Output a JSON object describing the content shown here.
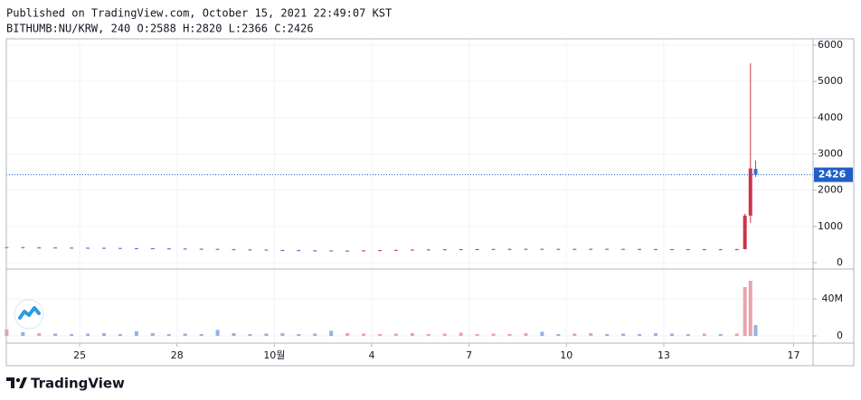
{
  "chart_data": {
    "type": "candlestick",
    "published": "Published on TradingView.com, October 15, 2021 22:49:07 KST",
    "symbol": "BITHUMB:NU/KRW, 240 O:2588 H:2820 L:2366 C:2426",
    "brand": "TradingView",
    "x": [
      22.75,
      23.25,
      23.75,
      24.25,
      24.75,
      25.25,
      25.75,
      26.25,
      26.75,
      27.25,
      27.75,
      28.25,
      28.75,
      29.25,
      29.75,
      30.25,
      30.75,
      31.25,
      31.75,
      32.25,
      32.75,
      33.25,
      33.75,
      34.25,
      34.75,
      35.25,
      35.75,
      36.25,
      36.75,
      37.25,
      37.75,
      38.25,
      38.75,
      39.25,
      39.75,
      40.25,
      40.75,
      41.25,
      41.75,
      42.25,
      42.75,
      43.25,
      43.75,
      44.25,
      44.75,
      45.25,
      45.5,
      45.67,
      45.83
    ],
    "open": [
      425,
      430,
      418,
      420,
      415,
      412,
      410,
      405,
      400,
      398,
      395,
      390,
      385,
      380,
      372,
      365,
      360,
      350,
      345,
      340,
      335,
      330,
      332,
      338,
      345,
      352,
      360,
      365,
      370,
      372,
      375,
      378,
      380,
      382,
      380,
      378,
      380,
      382,
      380,
      378,
      376,
      374,
      372,
      370,
      372,
      370,
      375,
      1300,
      2588
    ],
    "high": [
      438,
      438,
      428,
      428,
      423,
      420,
      418,
      413,
      408,
      406,
      403,
      398,
      393,
      388,
      380,
      373,
      368,
      358,
      353,
      348,
      343,
      340,
      346,
      353,
      360,
      368,
      373,
      378,
      380,
      383,
      386,
      388,
      390,
      390,
      388,
      388,
      390,
      390,
      388,
      386,
      384,
      382,
      380,
      380,
      380,
      383,
      1350,
      5500,
      2820
    ],
    "low": [
      417,
      410,
      410,
      407,
      404,
      402,
      397,
      392,
      390,
      387,
      382,
      377,
      372,
      364,
      357,
      352,
      342,
      337,
      332,
      327,
      322,
      322,
      324,
      330,
      337,
      344,
      352,
      357,
      362,
      364,
      367,
      370,
      372,
      372,
      370,
      370,
      372,
      372,
      370,
      368,
      366,
      364,
      362,
      362,
      362,
      362,
      370,
      1100,
      2366
    ],
    "close": [
      430,
      418,
      420,
      415,
      412,
      410,
      405,
      400,
      398,
      395,
      390,
      385,
      380,
      372,
      365,
      360,
      350,
      345,
      340,
      335,
      330,
      332,
      338,
      345,
      352,
      360,
      365,
      370,
      372,
      375,
      378,
      380,
      382,
      380,
      378,
      380,
      382,
      380,
      378,
      376,
      374,
      372,
      370,
      372,
      370,
      375,
      1300,
      2600,
      2426
    ],
    "volume": [
      7000000,
      4000000,
      3000000,
      2500000,
      2000000,
      2500000,
      3000000,
      2000000,
      5000000,
      3000000,
      2000000,
      2500000,
      2000000,
      6500000,
      3000000,
      2000000,
      2500000,
      3000000,
      2000000,
      2500000,
      5500000,
      3000000,
      2500000,
      2000000,
      2500000,
      3000000,
      2000000,
      2500000,
      3500000,
      2000000,
      2500000,
      2000000,
      3000000,
      4500000,
      2000000,
      2500000,
      3000000,
      2000000,
      2500000,
      2000000,
      3000000,
      2500000,
      2000000,
      2500000,
      2000000,
      2500000,
      52700000,
      59500000,
      11700000
    ],
    "xlim": [
      22.74,
      47.6
    ],
    "xticks": [
      25,
      28,
      {
        "value": 31,
        "label": "10월"
      },
      {
        "value": 34,
        "label": "4"
      },
      {
        "value": 37,
        "label": "7"
      },
      {
        "value": 40,
        "label": "10"
      },
      {
        "value": 43,
        "label": "13"
      },
      {
        "value": 47,
        "label": "17"
      }
    ],
    "ylim": [
      -174,
      6174
    ],
    "yticks": [
      0,
      1000,
      2000,
      3000,
      4000,
      5000,
      6000
    ],
    "y2lim": [
      -7800000,
      72200000
    ],
    "y2ticks": [
      0,
      {
        "value": 40000000,
        "label": "40M"
      }
    ],
    "up_color": "#c9364a",
    "down_color": "#3f6fcf",
    "up_volume_color": "#e9a3ab",
    "down_volume_color": "#93b1e3",
    "price_line_color": "#1e5fc7",
    "grid": true
  }
}
